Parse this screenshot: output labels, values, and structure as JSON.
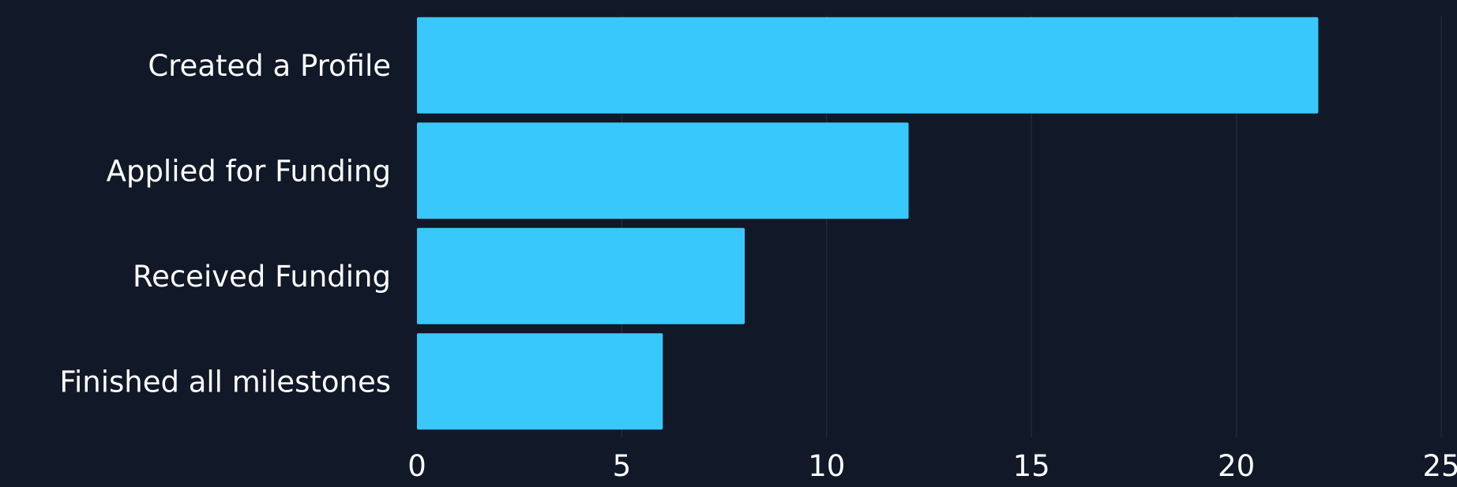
{
  "chart_data": {
    "type": "bar",
    "orientation": "horizontal",
    "categories": [
      "Created a Profile",
      "Applied for Funding",
      "Received Funding",
      "Finished all milestones"
    ],
    "values": [
      22,
      12,
      8,
      6
    ],
    "xlim": [
      0,
      25
    ],
    "x_ticks": [
      0,
      5,
      10,
      15,
      20,
      25
    ],
    "grid": "vertical",
    "legend": "none",
    "colors": {
      "background": "#111827",
      "bar": "#38c8fc",
      "text": "#ffffff",
      "grid": "#1f2937"
    }
  }
}
